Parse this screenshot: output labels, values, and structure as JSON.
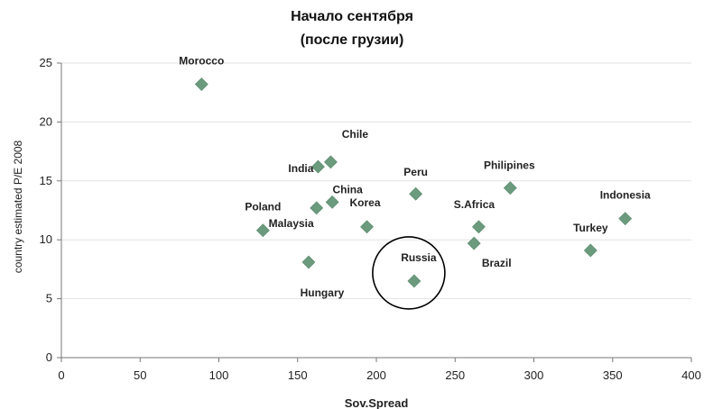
{
  "chart_data": {
    "type": "scatter",
    "title": "Начало сентября",
    "subtitle": "(после грузии)",
    "xlabel": "Sov.Spread",
    "ylabel": "country estimated P/E 2008",
    "xlim": [
      0,
      400
    ],
    "ylim": [
      0,
      25
    ],
    "xticks": [
      0,
      50,
      100,
      150,
      200,
      250,
      300,
      350,
      400
    ],
    "yticks": [
      0,
      5,
      10,
      15,
      20,
      25
    ],
    "grid": "horizontal",
    "marker": "diamond",
    "marker_color": "#6b9a7d",
    "points": [
      {
        "label": "Morocco",
        "x": 89,
        "y": 23.2
      },
      {
        "label": "Chile",
        "x": 171,
        "y": 16.6
      },
      {
        "label": "India",
        "x": 163,
        "y": 16.2
      },
      {
        "label": "China",
        "x": 172,
        "y": 13.2
      },
      {
        "label": "Malaysia",
        "x": 162,
        "y": 12.7
      },
      {
        "label": "Poland",
        "x": 128,
        "y": 10.8
      },
      {
        "label": "Korea",
        "x": 194,
        "y": 11.1
      },
      {
        "label": "Hungary",
        "x": 157,
        "y": 8.1
      },
      {
        "label": "Peru",
        "x": 225,
        "y": 13.9
      },
      {
        "label": "Russia",
        "x": 224,
        "y": 6.5
      },
      {
        "label": "S.Africa",
        "x": 265,
        "y": 11.1
      },
      {
        "label": "Brazil",
        "x": 262,
        "y": 9.7
      },
      {
        "label": "Philipines",
        "x": 285,
        "y": 14.4
      },
      {
        "label": "Turkey",
        "x": 336,
        "y": 9.1
      },
      {
        "label": "Indonesia",
        "x": 358,
        "y": 11.8
      }
    ],
    "annotations": [
      {
        "type": "circle",
        "around": "Russia"
      }
    ]
  }
}
